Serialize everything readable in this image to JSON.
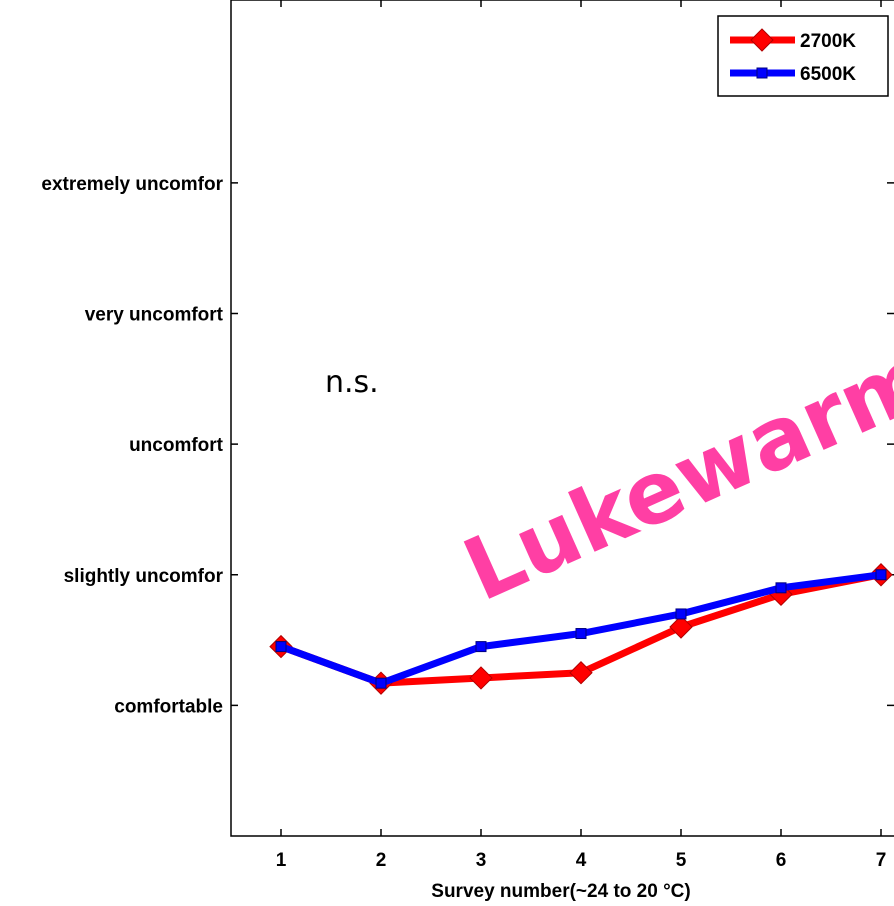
{
  "chart_data": {
    "type": "line",
    "xlabel": "Survey number(~24 to 20 °C)",
    "ylabel": "",
    "x": [
      1,
      2,
      3,
      4,
      5,
      6,
      7
    ],
    "xlim": [
      0.5,
      7.5
    ],
    "ylim": [
      -1,
      5.4
    ],
    "y_ticks": [
      {
        "value": 0,
        "label": "comfortable"
      },
      {
        "value": 1,
        "label": "slightly uncomfor"
      },
      {
        "value": 2,
        "label": "uncomfort"
      },
      {
        "value": 3,
        "label": "very uncomfort"
      },
      {
        "value": 4,
        "label": "extremely uncomfor"
      }
    ],
    "series": [
      {
        "name": "2700K",
        "color": "#ff0000",
        "marker": "diamond",
        "values": [
          0.45,
          0.17,
          0.21,
          0.25,
          0.6,
          0.85,
          1.0
        ]
      },
      {
        "name": "6500K",
        "color": "#0000ff",
        "marker": "square",
        "values": [
          0.45,
          0.17,
          0.45,
          0.55,
          0.7,
          0.9,
          1.0
        ]
      }
    ],
    "legend_position": "top-right",
    "grid": false,
    "annotations": [
      {
        "text": "n.s."
      }
    ],
    "watermark": "Lukewarm"
  }
}
